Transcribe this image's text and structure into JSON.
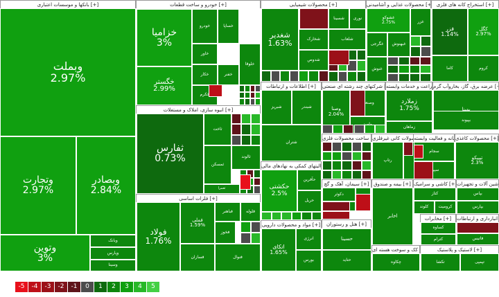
{
  "chart_data": {
    "type": "treemap",
    "sectors": [
      {
        "name": "بانکها و موسسات اعتباری [+]",
        "stocks": [
          {
            "symbol": "وبملت",
            "change": 2.97
          },
          {
            "symbol": "وتجارت",
            "change": 2.97
          },
          {
            "symbol": "وبصادر",
            "change": 2.84
          },
          {
            "symbol": "وتوین",
            "change": 3
          },
          {
            "symbol": "وبانک",
            "change": null
          },
          {
            "symbol": "وپارس",
            "change": null
          },
          {
            "symbol": "وسینا",
            "change": null
          }
        ]
      },
      {
        "name": "خودرو و ساخت قطعات [+]",
        "stocks": [
          {
            "symbol": "خزامیا",
            "change": 3
          },
          {
            "symbol": "خگستر",
            "change": 2.99
          },
          {
            "symbol": "خودرو",
            "change": null
          },
          {
            "symbol": "خساپا",
            "change": null
          },
          {
            "symbol": "خاور",
            "change": null
          },
          {
            "symbol": "خکار",
            "change": null
          },
          {
            "symbol": "خفنر",
            "change": null
          },
          {
            "symbol": "خکرم",
            "change": null
          },
          {
            "symbol": "خلوقا",
            "change": null
          }
        ]
      },
      {
        "name": "انبوه سازی، املاک و مستغلات [+]",
        "stocks": [
          {
            "symbol": "ثفارس",
            "change": 0.73
          },
          {
            "symbol": "ثاخت",
            "change": null
          },
          {
            "symbol": "ثالوند",
            "change": null
          },
          {
            "symbol": "ثمسکن",
            "change": null
          },
          {
            "symbol": "ثعمرا",
            "change": null
          }
        ]
      },
      {
        "name": "فلزات اساسی [+]",
        "stocks": [
          {
            "symbol": "فولاد",
            "change": 1.76
          },
          {
            "symbol": "فملی",
            "change": 1.59
          },
          {
            "symbol": "فخوز",
            "change": null
          },
          {
            "symbol": "فباهنر",
            "change": null
          },
          {
            "symbol": "فلوله",
            "change": null
          },
          {
            "symbol": "فسازان",
            "change": null
          },
          {
            "symbol": "فنوال",
            "change": null
          }
        ]
      },
      {
        "name": "محصولات شیمیایی [+]",
        "stocks": [
          {
            "symbol": "شغدیر",
            "change": 1.63
          },
          {
            "symbol": "شسینا",
            "change": null
          },
          {
            "symbol": "نوری",
            "change": null
          },
          {
            "symbol": "شپدیس",
            "change": null
          },
          {
            "symbol": "شخارک",
            "change": null
          },
          {
            "symbol": "شلعاب",
            "change": null
          },
          {
            "symbol": "شدوص",
            "change": null
          }
        ]
      },
      {
        "name": "محصولات غذایی و آشامیدنی [+]",
        "stocks": [
          {
            "symbol": "غشوکو",
            "change": 2.75
          },
          {
            "symbol": "غگرجی",
            "change": null
          },
          {
            "symbol": "غبهنوش",
            "change": null
          },
          {
            "symbol": "غزر",
            "change": null
          },
          {
            "symbol": "غنوش",
            "change": null
          }
        ]
      },
      {
        "name": "استخراج کانه های فلزی [+]",
        "stocks": [
          {
            "symbol": "فزر",
            "change": 1.14
          },
          {
            "symbol": "کگل",
            "change": 2.97
          },
          {
            "symbol": "کاما",
            "change": null
          },
          {
            "symbol": "کروم",
            "change": null
          }
        ]
      },
      {
        "name": "عرضه برق، گاز، بخاروآب گرم [+]",
        "stocks": [
          {
            "symbol": "بمپنا",
            "change": null
          },
          {
            "symbol": "بپیوند",
            "change": null
          }
        ]
      },
      {
        "name": "شرکتهای چند رشته ای صنعتی [+]",
        "stocks": [
          {
            "symbol": "وصنا",
            "change": 2.04
          },
          {
            "symbol": "وصنعت",
            "change": null
          },
          {
            "symbol": "وامید",
            "change": null
          }
        ]
      },
      {
        "name": "زراعت و خدمات وابسته [+]",
        "stocks": [
          {
            "symbol": "زملارد",
            "change": 1.75
          },
          {
            "symbol": "زماهان",
            "change": null
          }
        ]
      },
      {
        "name": "اطلاعات و ارتباطات [+]",
        "stocks": [
          {
            "symbol": "حکشتی",
            "change": 2.5
          },
          {
            "symbol": "حآفرین",
            "change": null
          },
          {
            "symbol": "حریل",
            "change": null
          }
        ]
      },
      {
        "name": "فعالیتهای کمکی به نهادهای مالی [+]",
        "stocks": [
          {
            "symbol": "اتکای",
            "change": 1.65
          },
          {
            "symbol": "انرژی",
            "change": null
          },
          {
            "symbol": "بورس",
            "change": null
          }
        ]
      },
      {
        "name": "مواد و محصولات دارویی [+]",
        "stocks": [
          {
            "symbol": "دکوثر",
            "change": null
          },
          {
            "symbol": "دامین",
            "change": null
          },
          {
            "symbol": "دارو",
            "change": null
          }
        ]
      },
      {
        "name": "ساخت محصولات فلزی [+]",
        "stocks": [
          {
            "symbol": "رتاپ",
            "change": null
          },
          {
            "symbol": "سیتا",
            "change": null
          }
        ]
      },
      {
        "name": "سیمان، آهک و گچ [+]",
        "stocks": [
          {
            "symbol": "سجام",
            "change": null
          },
          {
            "symbol": "سپرم",
            "change": null
          }
        ]
      },
      {
        "name": "هتل و رستوران [+]",
        "stocks": [
          {
            "symbol": "تیپیکو",
            "change": 2.3
          }
        ]
      },
      {
        "name": "سایر محصولات کانی غیرفلزی [+]",
        "stocks": [
          {
            "symbol": "کتاز",
            "change": null
          },
          {
            "symbol": "کلوند",
            "change": null
          },
          {
            "symbol": "کرومیت",
            "change": null
          }
        ]
      },
      {
        "name": "بیمه و صندوق [+]",
        "stocks": [
          {
            "symbol": "بپاس",
            "change": null
          },
          {
            "symbol": "بپارس",
            "change": null
          }
        ]
      },
      {
        "name": "رایانه و فعالیت وابسته [+]",
        "stocks": [
          {
            "symbol": "پکرمان",
            "change": null
          },
          {
            "symbol": "فاتیس",
            "change": null
          }
        ]
      },
      {
        "name": "محصولات کاغذی [+]",
        "stocks": [
          {
            "symbol": "چکاوه",
            "change": null
          }
        ]
      },
      {
        "name": "کاشی و سرامیک [+]",
        "stocks": [
          {
            "symbol": "کساوه",
            "change": null
          },
          {
            "symbol": "کترام",
            "change": null
          }
        ]
      },
      {
        "name": "ماشین آلات و تجهیزات [+]",
        "stocks": [
          {
            "symbol": "تکشا",
            "change": null
          },
          {
            "symbol": "تپمپی",
            "change": null
          }
        ]
      },
      {
        "name": "حمل و نقل، انبارداری و ارتباطات [+]",
        "stocks": [
          {
            "symbol": "حسینا",
            "change": null
          },
          {
            "symbol": "حتاید",
            "change": null
          }
        ]
      },
      {
        "name": "فرآورده های نفتی، کک و سوخت هسته ای [+]",
        "stocks": [
          {
            "symbol": "شبریز",
            "change": null
          },
          {
            "symbol": "شبندر",
            "change": null
          },
          {
            "symbol": "شتران",
            "change": null
          }
        ]
      },
      {
        "name": "مخابرات [+]",
        "stocks": [
          {
            "symbol": "اخابر",
            "change": null
          }
        ]
      },
      {
        "name": "لاستیک و پلاستیک [+]",
        "stocks": [
          {
            "symbol": "پتایر",
            "change": null
          }
        ]
      }
    ],
    "legend": {
      "scale": [
        -5,
        -4,
        -3,
        -2,
        -1,
        0,
        1,
        2,
        3,
        4,
        5
      ],
      "colors": [
        "#e8101b",
        "#be0f18",
        "#9c1018",
        "#7f121a",
        "#5e141a",
        "#4c4c4c",
        "#0e6a0e",
        "#0d870d",
        "#10a010",
        "#28b828",
        "#44d044"
      ]
    }
  }
}
